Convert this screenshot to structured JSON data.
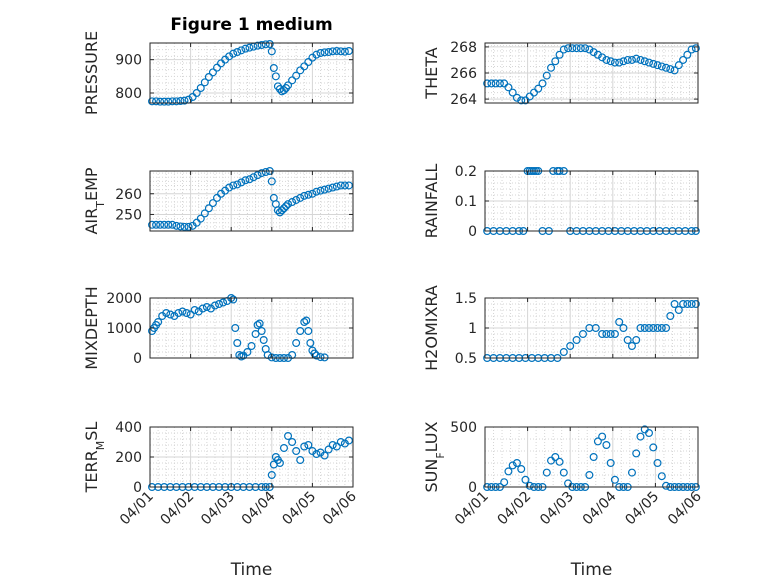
{
  "figure_title": "Figure 1 medium",
  "colors": {
    "marker": "#0072BD",
    "grid": "#d6d6d6",
    "axis": "#262626"
  },
  "chart_data": [
    {
      "type": "scatter",
      "title": "Figure 1 medium",
      "ylabel": "PRESSURE",
      "ylim": [
        770,
        950
      ],
      "yticks": [
        800,
        900
      ],
      "yticklabels": [
        "800",
        "900"
      ],
      "xticks": [
        0,
        1,
        2,
        3,
        4,
        5
      ],
      "xticklabels": [],
      "xlabel": "",
      "grid": true,
      "minor_grid": true,
      "x": [
        0.05,
        0.15,
        0.25,
        0.35,
        0.45,
        0.55,
        0.65,
        0.75,
        0.85,
        0.95,
        1.05,
        1.15,
        1.25,
        1.35,
        1.45,
        1.55,
        1.65,
        1.75,
        1.85,
        1.95,
        2.05,
        2.15,
        2.25,
        2.35,
        2.45,
        2.55,
        2.65,
        2.75,
        2.85,
        2.95,
        3.0,
        3.05,
        3.1,
        3.15,
        3.2,
        3.25,
        3.3,
        3.35,
        3.4,
        3.5,
        3.6,
        3.7,
        3.8,
        3.9,
        4.0,
        4.1,
        4.2,
        4.3,
        4.4,
        4.5,
        4.6,
        4.7,
        4.8,
        4.9
      ],
      "y": [
        775,
        775,
        774,
        774,
        774,
        775,
        775,
        776,
        777,
        780,
        788,
        800,
        815,
        832,
        848,
        862,
        876,
        889,
        900,
        910,
        918,
        923,
        928,
        933,
        936,
        939,
        942,
        944,
        946,
        947,
        925,
        875,
        850,
        820,
        812,
        805,
        808,
        815,
        823,
        838,
        852,
        868,
        880,
        893,
        906,
        915,
        920,
        922,
        923,
        925,
        926,
        925,
        924,
        926
      ]
    },
    {
      "type": "scatter",
      "ylabel": "THETA",
      "ylim": [
        263.7,
        268.3
      ],
      "yticks": [
        264,
        266,
        268
      ],
      "yticklabels": [
        "264",
        "266",
        "268"
      ],
      "xticks": [
        0,
        1,
        2,
        3,
        4,
        5
      ],
      "xticklabels": [],
      "xlabel": "",
      "grid": true,
      "minor_grid": true,
      "x": [
        0.05,
        0.15,
        0.25,
        0.35,
        0.45,
        0.55,
        0.65,
        0.75,
        0.85,
        0.95,
        1.05,
        1.15,
        1.25,
        1.35,
        1.45,
        1.55,
        1.65,
        1.75,
        1.85,
        1.95,
        2.05,
        2.15,
        2.25,
        2.35,
        2.45,
        2.55,
        2.65,
        2.75,
        2.85,
        2.95,
        3.05,
        3.15,
        3.25,
        3.35,
        3.45,
        3.55,
        3.65,
        3.75,
        3.85,
        3.95,
        4.05,
        4.15,
        4.25,
        4.35,
        4.45,
        4.55,
        4.65,
        4.75,
        4.85,
        4.95
      ],
      "y": [
        265.2,
        265.2,
        265.2,
        265.2,
        265.2,
        264.9,
        264.5,
        264.1,
        263.9,
        263.9,
        264.2,
        264.5,
        264.8,
        265.2,
        265.8,
        266.4,
        266.9,
        267.4,
        267.8,
        267.9,
        267.9,
        267.9,
        267.9,
        267.9,
        267.8,
        267.6,
        267.4,
        267.2,
        267.0,
        266.9,
        266.8,
        266.8,
        266.9,
        267.0,
        267.0,
        267.1,
        267.0,
        266.9,
        266.8,
        266.7,
        266.6,
        266.5,
        266.4,
        266.3,
        266.2,
        266.6,
        267.0,
        267.4,
        267.8,
        267.9
      ]
    },
    {
      "type": "scatter",
      "ylabel": "AIR_TEMP",
      "ylim": [
        242,
        271
      ],
      "yticks": [
        250,
        260
      ],
      "yticklabels": [
        "250",
        "260"
      ],
      "xticks": [
        0,
        1,
        2,
        3,
        4,
        5
      ],
      "xticklabels": [],
      "xlabel": "",
      "grid": true,
      "minor_grid": true,
      "x": [
        0.05,
        0.15,
        0.25,
        0.35,
        0.45,
        0.55,
        0.65,
        0.75,
        0.85,
        0.95,
        1.05,
        1.15,
        1.25,
        1.35,
        1.45,
        1.55,
        1.65,
        1.75,
        1.85,
        1.95,
        2.05,
        2.15,
        2.25,
        2.35,
        2.45,
        2.55,
        2.65,
        2.75,
        2.85,
        2.95,
        3.0,
        3.05,
        3.1,
        3.15,
        3.2,
        3.25,
        3.3,
        3.35,
        3.4,
        3.5,
        3.6,
        3.7,
        3.8,
        3.9,
        4.0,
        4.1,
        4.2,
        4.3,
        4.4,
        4.5,
        4.6,
        4.7,
        4.8,
        4.9
      ],
      "y": [
        245,
        245,
        245,
        245,
        245,
        245,
        244.5,
        244.2,
        244,
        244,
        244.5,
        246,
        248,
        250.5,
        253,
        255.5,
        258,
        260,
        261.5,
        263,
        264,
        264.5,
        265.5,
        266.5,
        267,
        268,
        269,
        270,
        270.5,
        271,
        266,
        258,
        255,
        252,
        251,
        252,
        253,
        254,
        255,
        256,
        257,
        258,
        259,
        259.5,
        260,
        261,
        261.5,
        262,
        262.5,
        263,
        263.5,
        264,
        264,
        264
      ]
    },
    {
      "type": "scatter",
      "ylabel": "RAINFALL",
      "ylim": [
        0,
        0.2
      ],
      "yticks": [
        0,
        0.1,
        0.2
      ],
      "yticklabels": [
        "0",
        "0.1",
        "0.2"
      ],
      "xticks": [
        0,
        1,
        2,
        3,
        4,
        5
      ],
      "xticklabels": [],
      "xlabel": "",
      "grid": true,
      "minor_grid": true,
      "x": [
        0.05,
        0.2,
        0.35,
        0.5,
        0.65,
        0.8,
        0.9,
        1.0,
        1.05,
        1.1,
        1.15,
        1.2,
        1.25,
        1.35,
        1.5,
        1.6,
        1.7,
        1.75,
        1.85,
        2.0,
        2.15,
        2.3,
        2.45,
        2.6,
        2.75,
        2.9,
        3.05,
        3.2,
        3.35,
        3.5,
        3.65,
        3.8,
        3.95,
        4.1,
        4.25,
        4.4,
        4.55,
        4.7,
        4.85,
        4.95
      ],
      "y": [
        0,
        0,
        0,
        0,
        0,
        0,
        0,
        0.2,
        0.2,
        0.2,
        0.2,
        0.2,
        0.2,
        0,
        0,
        0.2,
        0.2,
        0.2,
        0.2,
        0,
        0,
        0,
        0,
        0,
        0,
        0,
        0,
        0,
        0,
        0,
        0,
        0,
        0,
        0,
        0,
        0,
        0,
        0,
        0,
        0
      ]
    },
    {
      "type": "scatter",
      "ylabel": "MIXDEPTH",
      "ylim": [
        0,
        2000
      ],
      "yticks": [
        0,
        1000,
        2000
      ],
      "yticklabels": [
        "0",
        "1000",
        "2000"
      ],
      "xticks": [
        0,
        1,
        2,
        3,
        4,
        5
      ],
      "xticklabels": [],
      "xlabel": "",
      "grid": true,
      "minor_grid": true,
      "x": [
        0.05,
        0.1,
        0.15,
        0.2,
        0.3,
        0.4,
        0.5,
        0.6,
        0.7,
        0.8,
        0.9,
        1.0,
        1.1,
        1.2,
        1.3,
        1.4,
        1.5,
        1.6,
        1.7,
        1.8,
        1.9,
        2.0,
        2.05,
        2.1,
        2.15,
        2.2,
        2.25,
        2.3,
        2.4,
        2.5,
        2.6,
        2.65,
        2.7,
        2.75,
        2.8,
        2.85,
        2.9,
        3.0,
        3.1,
        3.2,
        3.3,
        3.4,
        3.5,
        3.6,
        3.7,
        3.8,
        3.85,
        3.9,
        3.95,
        4.0,
        4.05,
        4.1,
        4.2,
        4.3
      ],
      "y": [
        900,
        1000,
        1100,
        1200,
        1400,
        1500,
        1450,
        1400,
        1500,
        1550,
        1500,
        1450,
        1600,
        1550,
        1650,
        1700,
        1650,
        1750,
        1800,
        1850,
        1900,
        2000,
        1950,
        1000,
        500,
        100,
        50,
        80,
        200,
        400,
        800,
        1100,
        1150,
        900,
        600,
        300,
        100,
        20,
        0,
        0,
        0,
        0,
        100,
        500,
        900,
        1200,
        1250,
        900,
        500,
        250,
        150,
        80,
        30,
        20
      ]
    },
    {
      "type": "scatter",
      "ylabel": "H2OMIXRA",
      "ylim": [
        0.5,
        1.5
      ],
      "yticks": [
        0.5,
        1,
        1.5
      ],
      "yticklabels": [
        "0.5",
        "1",
        "1.5"
      ],
      "xticks": [
        0,
        1,
        2,
        3,
        4,
        5
      ],
      "xticklabels": [],
      "xlabel": "",
      "grid": true,
      "minor_grid": true,
      "x": [
        0.05,
        0.2,
        0.35,
        0.5,
        0.65,
        0.8,
        0.95,
        1.1,
        1.25,
        1.4,
        1.55,
        1.7,
        1.85,
        2.0,
        2.15,
        2.3,
        2.45,
        2.6,
        2.75,
        2.85,
        2.95,
        3.05,
        3.15,
        3.25,
        3.35,
        3.45,
        3.55,
        3.65,
        3.75,
        3.85,
        3.95,
        4.05,
        4.15,
        4.25,
        4.35,
        4.45,
        4.55,
        4.65,
        4.75,
        4.85,
        4.95
      ],
      "y": [
        0.5,
        0.5,
        0.5,
        0.5,
        0.5,
        0.5,
        0.5,
        0.5,
        0.5,
        0.5,
        0.5,
        0.5,
        0.6,
        0.7,
        0.8,
        0.9,
        1.0,
        1.0,
        0.9,
        0.9,
        0.9,
        0.9,
        1.1,
        1.0,
        0.8,
        0.7,
        0.8,
        1.0,
        1.0,
        1.0,
        1.0,
        1.0,
        1.0,
        1.0,
        1.2,
        1.4,
        1.3,
        1.4,
        1.4,
        1.4,
        1.4
      ]
    },
    {
      "type": "scatter",
      "ylabel": "TERR_MSL",
      "ylim": [
        0,
        400
      ],
      "yticks": [
        0,
        200,
        400
      ],
      "yticklabels": [
        "0",
        "200",
        "400"
      ],
      "xticks": [
        0,
        1,
        2,
        3,
        4,
        5
      ],
      "xticklabels": [
        "04/01",
        "04/02",
        "04/03",
        "04/04",
        "04/05",
        "04/06"
      ],
      "xlabel": "Time",
      "grid": true,
      "minor_grid": true,
      "x": [
        0.05,
        0.2,
        0.35,
        0.5,
        0.65,
        0.8,
        0.95,
        1.1,
        1.25,
        1.4,
        1.55,
        1.7,
        1.85,
        2.0,
        2.15,
        2.3,
        2.45,
        2.6,
        2.75,
        2.85,
        2.95,
        3.0,
        3.05,
        3.1,
        3.15,
        3.2,
        3.3,
        3.4,
        3.5,
        3.6,
        3.7,
        3.8,
        3.9,
        4.0,
        4.1,
        4.2,
        4.3,
        4.4,
        4.5,
        4.6,
        4.7,
        4.8,
        4.9
      ],
      "y": [
        0,
        0,
        0,
        0,
        0,
        0,
        0,
        0,
        0,
        0,
        0,
        0,
        0,
        0,
        0,
        0,
        0,
        0,
        0,
        0,
        0,
        80,
        150,
        200,
        180,
        160,
        260,
        340,
        300,
        240,
        180,
        270,
        280,
        240,
        220,
        230,
        210,
        250,
        280,
        270,
        300,
        290,
        310
      ]
    },
    {
      "type": "scatter",
      "ylabel": "SUN_FLUX",
      "ylim": [
        0,
        500
      ],
      "yticks": [
        0,
        500
      ],
      "yticklabels": [
        "0",
        "500"
      ],
      "xticks": [
        0,
        1,
        2,
        3,
        4,
        5
      ],
      "xticklabels": [
        "04/01",
        "04/02",
        "04/03",
        "04/04",
        "04/05",
        "04/06"
      ],
      "xlabel": "Time",
      "grid": true,
      "minor_grid": true,
      "x": [
        0.05,
        0.15,
        0.25,
        0.35,
        0.45,
        0.55,
        0.65,
        0.75,
        0.85,
        0.95,
        1.05,
        1.15,
        1.25,
        1.35,
        1.45,
        1.55,
        1.65,
        1.75,
        1.85,
        1.95,
        2.05,
        2.15,
        2.25,
        2.35,
        2.45,
        2.55,
        2.65,
        2.75,
        2.85,
        2.95,
        3.05,
        3.15,
        3.25,
        3.35,
        3.45,
        3.55,
        3.65,
        3.75,
        3.85,
        3.95,
        4.05,
        4.15,
        4.25,
        4.35,
        4.45,
        4.55,
        4.65,
        4.75,
        4.85,
        4.95
      ],
      "y": [
        0,
        0,
        0,
        0,
        40,
        130,
        180,
        200,
        150,
        60,
        10,
        0,
        0,
        0,
        120,
        220,
        250,
        210,
        120,
        30,
        0,
        0,
        0,
        0,
        100,
        250,
        380,
        420,
        350,
        200,
        60,
        0,
        0,
        0,
        120,
        280,
        420,
        480,
        450,
        330,
        200,
        90,
        10,
        0,
        0,
        0,
        0,
        0,
        0,
        0
      ]
    }
  ]
}
